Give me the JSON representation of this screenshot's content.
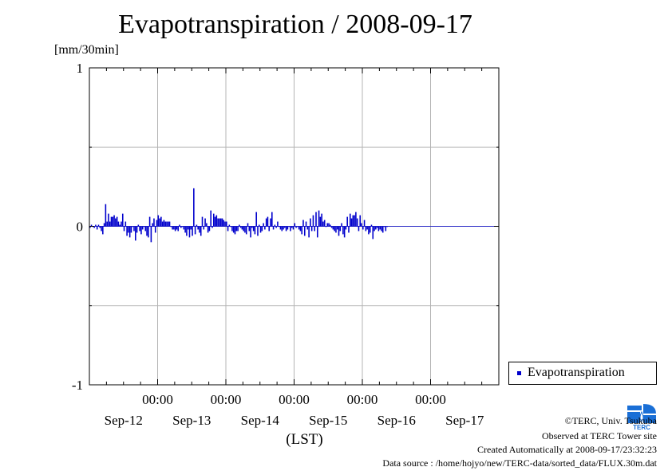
{
  "title": "Evapotranspiration / 2008-09-17",
  "unit_label": "[mm/30min]",
  "x_axis_label": "(LST)",
  "legend": {
    "label": "Evapotranspiration"
  },
  "credits": {
    "copyright": "©TERC, Univ. Tsukuba",
    "site": "Observed at TERC Tower site",
    "created": "Created Automatically at 2008-09-17/23:32:23",
    "source": "Data source : /home/hojyo/new/TERC-data/sorted_data/FLUX.30m.dat"
  },
  "logo": {
    "text": "TERC",
    "icon": "terc-logo"
  },
  "colors": {
    "series": "#0000cc",
    "grid": "#b4b4b4",
    "axis": "#000000"
  },
  "chart_data": {
    "type": "bar",
    "title": "Evapotranspiration / 2008-09-17",
    "ylabel": "[mm/30min]",
    "xlabel": "(LST)",
    "ylim": [
      -1,
      1
    ],
    "y_ticks": [
      -1,
      0,
      1
    ],
    "x_range_days": [
      "Sep-12",
      "Sep-17"
    ],
    "x_tick_time_labels": [
      "00:00",
      "00:00",
      "00:00",
      "00:00",
      "00:00"
    ],
    "x_tick_date_labels": [
      "Sep-12",
      "Sep-13",
      "Sep-14",
      "Sep-15",
      "Sep-16",
      "Sep-17"
    ],
    "grid": true,
    "legend_position": "right",
    "series": [
      {
        "name": "Evapotranspiration",
        "start": "2008-09-12 00:00",
        "interval_minutes": 30,
        "values": [
          -0.01,
          0.01,
          0.0,
          -0.01,
          0.01,
          -0.02,
          0.01,
          -0.01,
          -0.03,
          -0.05,
          0.02,
          0.14,
          0.03,
          0.08,
          0.03,
          0.06,
          0.06,
          0.07,
          0.05,
          0.06,
          0.03,
          0.01,
          0.03,
          0.08,
          -0.03,
          0.03,
          -0.06,
          -0.04,
          -0.07,
          -0.04,
          0.0,
          -0.03,
          -0.09,
          -0.04,
          0.01,
          -0.03,
          -0.05,
          -0.02,
          0.0,
          -0.03,
          -0.06,
          -0.07,
          0.06,
          -0.1,
          0.02,
          0.05,
          -0.04,
          0.04,
          0.07,
          0.05,
          0.06,
          0.03,
          0.04,
          0.03,
          0.03,
          0.03,
          0.03,
          0.0,
          -0.02,
          -0.02,
          -0.03,
          -0.02,
          -0.03,
          0.01,
          -0.01,
          0.0,
          -0.02,
          -0.04,
          -0.06,
          -0.02,
          -0.07,
          -0.02,
          -0.06,
          0.24,
          -0.05,
          0.01,
          -0.02,
          -0.04,
          -0.06,
          0.06,
          -0.02,
          0.05,
          0.02,
          -0.04,
          -0.03,
          0.1,
          -0.01,
          0.08,
          0.06,
          0.07,
          0.05,
          0.05,
          0.05,
          0.05,
          0.04,
          0.03,
          0.03,
          -0.03,
          0.01,
          0.0,
          -0.03,
          -0.04,
          -0.05,
          -0.03,
          -0.03,
          0.01,
          -0.01,
          -0.02,
          -0.03,
          -0.04,
          -0.05,
          0.02,
          -0.03,
          -0.07,
          -0.01,
          -0.03,
          -0.05,
          0.09,
          -0.06,
          0.01,
          -0.04,
          -0.03,
          0.02,
          -0.02,
          0.05,
          0.06,
          -0.03,
          0.05,
          0.09,
          -0.02,
          0.01,
          -0.01,
          0.03,
          0.0,
          -0.02,
          -0.03,
          -0.02,
          -0.01,
          -0.03,
          -0.02,
          0.0,
          -0.03,
          -0.01,
          -0.02,
          0.02,
          -0.01,
          0.0,
          -0.02,
          -0.03,
          -0.05,
          0.04,
          -0.06,
          0.03,
          -0.02,
          -0.07,
          0.05,
          -0.03,
          0.07,
          -0.03,
          0.09,
          -0.07,
          0.1,
          0.06,
          0.08,
          0.03,
          0.04,
          0.0,
          0.02,
          0.02,
          0.01,
          -0.01,
          -0.02,
          -0.03,
          -0.04,
          -0.02,
          -0.06,
          -0.03,
          0.02,
          -0.05,
          -0.07,
          -0.02,
          0.06,
          -0.04,
          0.08,
          0.05,
          0.07,
          0.07,
          0.09,
          0.05,
          -0.03,
          0.07,
          0.02,
          -0.02,
          0.04,
          -0.03,
          -0.02,
          -0.05,
          -0.04,
          0.01,
          -0.08,
          -0.03,
          -0.02,
          -0.01,
          -0.03,
          -0.02,
          -0.03,
          -0.04,
          0.0,
          -0.03,
          0.0
        ]
      }
    ]
  }
}
